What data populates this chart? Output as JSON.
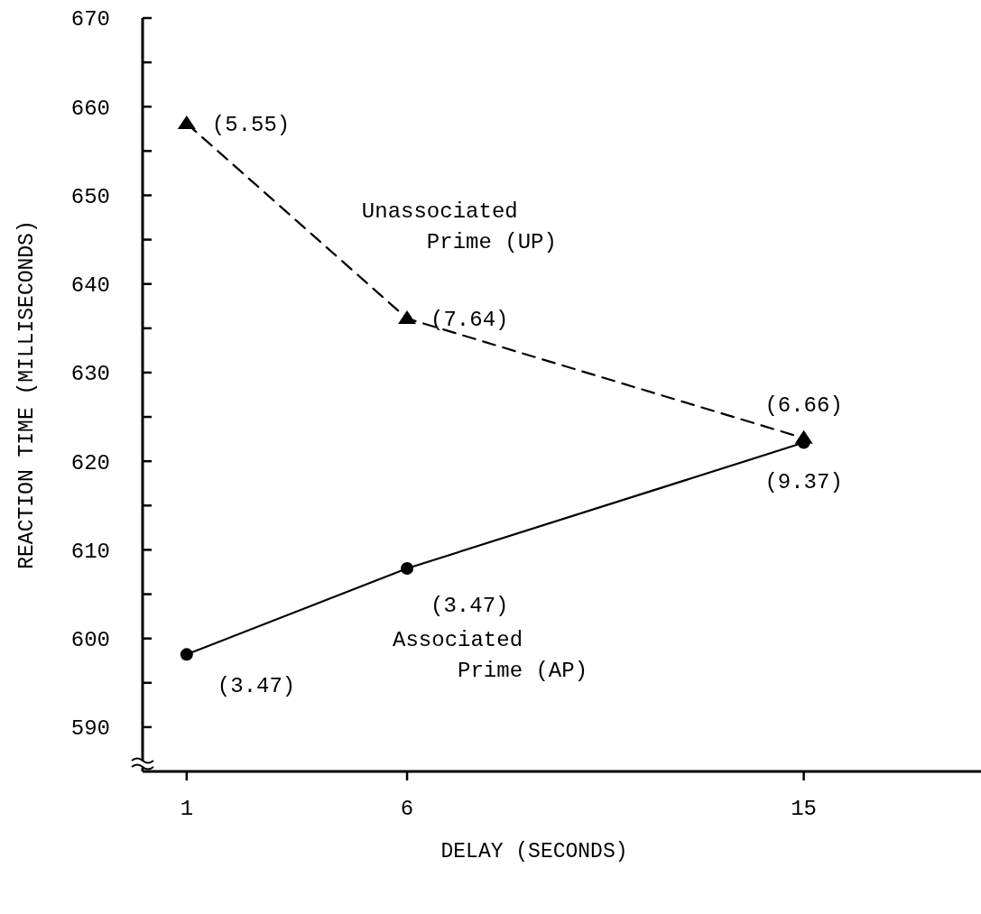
{
  "chart_data": {
    "type": "line",
    "xlabel": "DELAY (SECONDS)",
    "ylabel": "REACTION TIME (MILLISECONDS)",
    "xlim": [
      0,
      19
    ],
    "xticks": [
      1,
      6,
      15
    ],
    "ylim": [
      585,
      670
    ],
    "yticks": [
      {
        "value": 590,
        "label": "590"
      },
      {
        "value": 595,
        "label": null
      },
      {
        "value": 600,
        "label": "600"
      },
      {
        "value": 605,
        "label": null
      },
      {
        "value": 610,
        "label": "610"
      },
      {
        "value": 615,
        "label": null
      },
      {
        "value": 620,
        "label": "620"
      },
      {
        "value": 625,
        "label": null
      },
      {
        "value": 630,
        "label": "630"
      },
      {
        "value": 635,
        "label": null
      },
      {
        "value": 640,
        "label": "640"
      },
      {
        "value": 645,
        "label": null
      },
      {
        "value": 650,
        "label": "650"
      },
      {
        "value": 655,
        "label": null
      },
      {
        "value": 660,
        "label": "660"
      },
      {
        "value": 665,
        "label": null
      },
      {
        "value": 670,
        "label": "670"
      }
    ],
    "x": [
      1,
      6,
      15
    ],
    "series": [
      {
        "name": "Unassociated Prime (UP)",
        "color": "#000000",
        "values": [
          658.1,
          636.1,
          622.6
        ],
        "marker": "triangle",
        "line_style": "dashed"
      },
      {
        "name": "Associated Prime (AP)",
        "color": "#000000",
        "values": [
          598.2,
          607.9,
          622.1
        ],
        "marker": "circle",
        "line_style": "solid"
      }
    ],
    "annotations": [
      {
        "text": "(5.55)",
        "x": 1,
        "y": 658.1
      },
      {
        "text": "(7.64)",
        "x": 6,
        "y": 636.1
      },
      {
        "text": "(6.66)",
        "x": 15,
        "y": 622.6
      },
      {
        "text": "(3.47)",
        "x": 1,
        "y": 598.2
      },
      {
        "text": "(3.47)",
        "x": 6,
        "y": 607.9
      },
      {
        "text": "(9.37)",
        "x": 15,
        "y": 622.1
      }
    ],
    "grid": false
  }
}
